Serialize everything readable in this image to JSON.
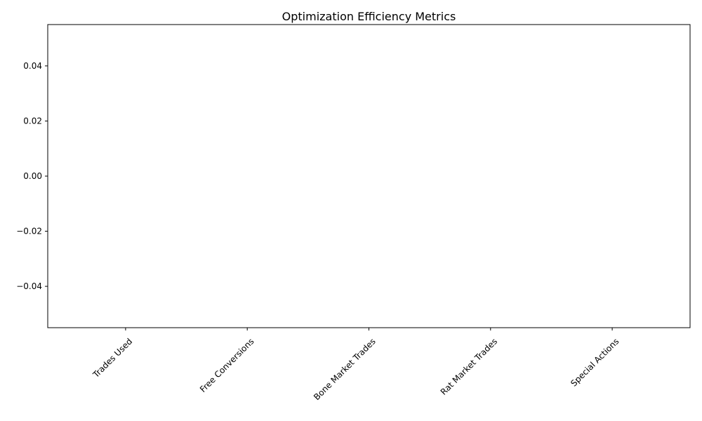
{
  "chart_data": {
    "type": "bar",
    "title": "Optimization Efficiency Metrics",
    "xlabel": "",
    "ylabel": "",
    "categories": [
      "Trades Used",
      "Free Conversions",
      "Bone Market Trades",
      "Rat Market Trades",
      "Special Actions"
    ],
    "values": [
      0,
      0,
      0,
      0,
      0
    ],
    "ylim": [
      -0.055,
      0.055
    ],
    "yticks": [
      "0.04",
      "0.02",
      "0.00",
      "−0.02",
      "−0.04"
    ],
    "ytick_values": [
      0.04,
      0.02,
      0.0,
      -0.02,
      -0.04
    ],
    "xtick_rotation": 45,
    "grid": false,
    "legend": "none",
    "bar_color": "#1f77b4"
  }
}
